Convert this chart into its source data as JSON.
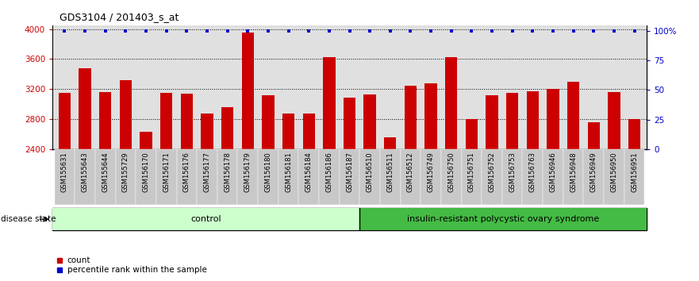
{
  "title": "GDS3104 / 201403_s_at",
  "samples": [
    "GSM155631",
    "GSM155643",
    "GSM155644",
    "GSM155729",
    "GSM156170",
    "GSM156171",
    "GSM156176",
    "GSM156177",
    "GSM156178",
    "GSM156179",
    "GSM156180",
    "GSM156181",
    "GSM156184",
    "GSM156186",
    "GSM156187",
    "GSM156510",
    "GSM156511",
    "GSM156512",
    "GSM156749",
    "GSM156750",
    "GSM156751",
    "GSM156752",
    "GSM156753",
    "GSM156763",
    "GSM156946",
    "GSM156948",
    "GSM156949",
    "GSM156950",
    "GSM156951"
  ],
  "counts": [
    3150,
    3480,
    3160,
    3320,
    2630,
    3150,
    3140,
    2870,
    2960,
    3950,
    3120,
    2870,
    2870,
    3620,
    3080,
    3130,
    2560,
    3240,
    3280,
    3620,
    2800,
    3120,
    3150,
    3170,
    3200,
    3300,
    2760,
    3160,
    2800
  ],
  "n_control": 15,
  "n_disease": 14,
  "control_label": "control",
  "disease_label": "insulin-resistant polycystic ovary syndrome",
  "disease_state_label": "disease state",
  "bar_color": "#CC0000",
  "percentile_color": "#0000CC",
  "control_bg": "#CCFFCC",
  "disease_bg": "#44BB44",
  "ylim_left": [
    2400,
    4050
  ],
  "ylim_right": [
    0,
    105
  ],
  "yticks_left": [
    2400,
    2800,
    3200,
    3600,
    4000
  ],
  "yticks_right": [
    0,
    25,
    50,
    75,
    100
  ],
  "grid_lines": [
    2800,
    3200,
    3600
  ],
  "background_color": "#E0E0E0",
  "tick_bg_color": "#C8C8C8",
  "legend_count_label": "count",
  "legend_pct_label": "percentile rank within the sample"
}
